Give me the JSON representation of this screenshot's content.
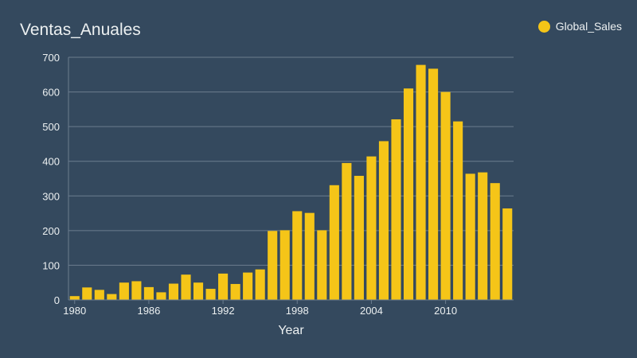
{
  "colors": {
    "background": "#34495e",
    "bar": "#f5c518",
    "grid": "#6b7d8f",
    "text": "#ecf0f1"
  },
  "chart_data": {
    "type": "bar",
    "title": "Ventas_Anuales",
    "xlabel": "Year",
    "ylabel": "",
    "ylim": [
      0,
      700
    ],
    "yticks": [
      0,
      100,
      200,
      300,
      400,
      500,
      600,
      700
    ],
    "xticks": [
      1980,
      1986,
      1992,
      1998,
      2004,
      2010
    ],
    "legend": {
      "position": "top-right",
      "entries": [
        "Global_Sales"
      ]
    },
    "grid": true,
    "categories": [
      1980,
      1981,
      1982,
      1983,
      1984,
      1985,
      1986,
      1987,
      1988,
      1989,
      1990,
      1991,
      1992,
      1993,
      1994,
      1995,
      1996,
      1997,
      1998,
      1999,
      2000,
      2001,
      2002,
      2003,
      2004,
      2005,
      2006,
      2007,
      2008,
      2009,
      2010,
      2011,
      2012,
      2013,
      2014,
      2015
    ],
    "series": [
      {
        "name": "Global_Sales",
        "values": [
          11,
          36,
          29,
          17,
          50,
          54,
          37,
          22,
          47,
          73,
          50,
          32,
          76,
          46,
          79,
          88,
          199,
          201,
          256,
          251,
          201,
          331,
          395,
          358,
          414,
          458,
          521,
          610,
          678,
          667,
          600,
          515,
          364,
          368,
          337,
          264
        ]
      }
    ]
  }
}
